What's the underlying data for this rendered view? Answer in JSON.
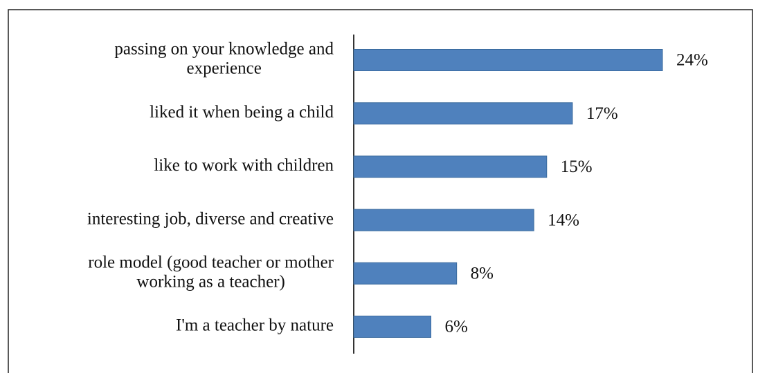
{
  "chart_data": {
    "type": "bar",
    "orientation": "horizontal",
    "categories": [
      [
        "passing on your knowledge and",
        "experience"
      ],
      [
        "liked it when being a child"
      ],
      [
        "like to work with children"
      ],
      [
        "interesting job, diverse and creative"
      ],
      [
        "role model (good teacher or mother",
        "working as a teacher)"
      ],
      [
        "I'm a teacher by nature"
      ]
    ],
    "values": [
      24,
      17,
      15,
      14,
      8,
      6
    ],
    "value_labels": [
      "24%",
      "17%",
      "15%",
      "14%",
      "8%",
      "6%"
    ],
    "color": "#4f81bd"
  }
}
